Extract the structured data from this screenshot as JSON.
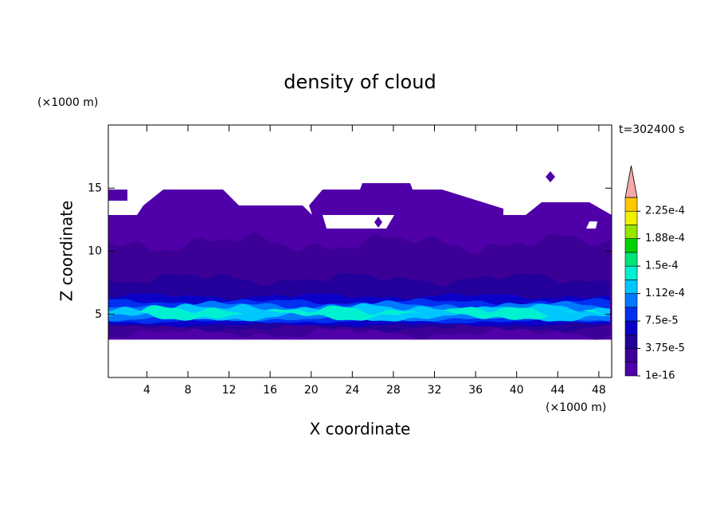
{
  "chart_data": {
    "type": "contour",
    "title": "density of cloud",
    "x_label": "X coordinate",
    "y_label": "Z coordinate",
    "x_unit": "(×1000 m)",
    "y_unit": "(×1000 m)",
    "annotation": "t=302400 s",
    "xlim": [
      0.25,
      49.25
    ],
    "xticks": [
      4,
      8,
      12,
      16,
      20,
      24,
      28,
      32,
      36,
      40,
      44,
      48
    ],
    "ylim": [
      0,
      20
    ],
    "yticks": [
      5,
      10,
      15
    ],
    "colorbar": {
      "lim": [
        1e-16,
        0.00024375
      ],
      "ticks": [
        1e-16,
        {
          "value": 3.75e-05,
          "label": "3.75e-5"
        },
        {
          "value": 7.5e-05,
          "label": "7.5e-5"
        },
        {
          "value": 0.0001125,
          "label": "1.12e-4"
        },
        {
          "value": 0.00015,
          "label": "1.5e-4"
        },
        {
          "value": 0.0001875,
          "label": "1.88e-4"
        },
        {
          "value": 0.000225,
          "label": "2.25e-4"
        }
      ],
      "colors": [
        "#5000a8",
        "#3c0096",
        "#23009b",
        "#0a00c8",
        "#0030f0",
        "#0078ff",
        "#00c8ff",
        "#00f0d2",
        "#00e678",
        "#00d200",
        "#96e600",
        "#f0f000",
        "#ffc800",
        "#ff8c00",
        "#ff5000",
        "#ff1400"
      ],
      "extend_color": "#f4a8a8"
    }
  }
}
